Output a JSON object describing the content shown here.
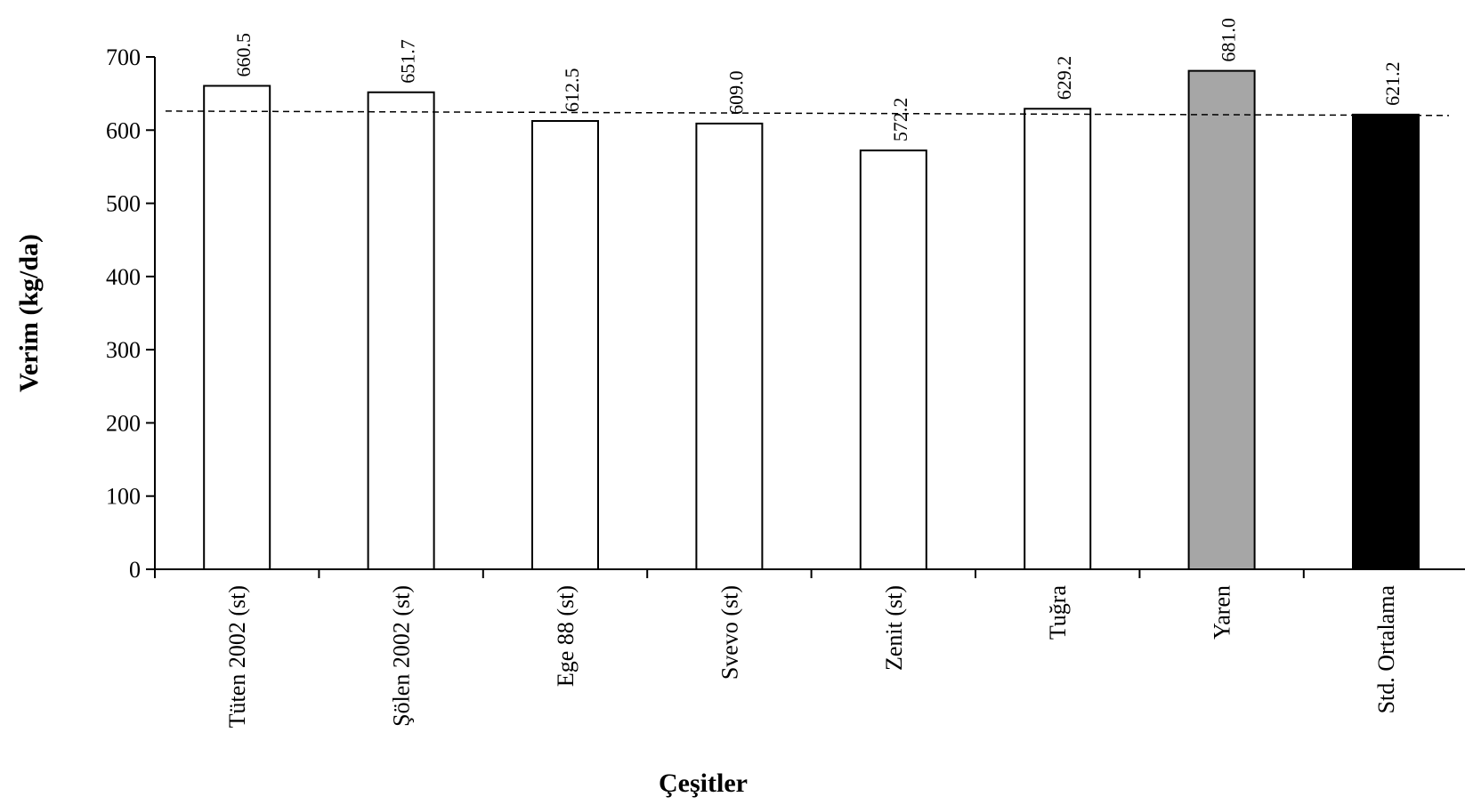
{
  "chart_data": {
    "type": "bar",
    "title": "",
    "xlabel": "Çeşitler",
    "ylabel": "Verim (kg/da)",
    "ylim": [
      0,
      700
    ],
    "yticks": [
      0,
      100,
      200,
      300,
      400,
      500,
      600,
      700
    ],
    "grid": false,
    "legend": "none",
    "categories": [
      "Tüten 2002 (st)",
      "Şölen 2002 (st)",
      "Ege 88 (st)",
      "Svevo (st)",
      "Zenit (st)",
      "Tuğra",
      "Yaren",
      "Std. Ortalama"
    ],
    "values": [
      660.5,
      651.7,
      612.5,
      609.0,
      572.2,
      629.2,
      681.0,
      621.2
    ],
    "value_labels": [
      "660.5",
      "651.7",
      "612.5",
      "609.0",
      "572.2",
      "629.2",
      "681.0",
      "621.2"
    ],
    "bar_colors": [
      "#ffffff",
      "#ffffff",
      "#ffffff",
      "#ffffff",
      "#ffffff",
      "#ffffff",
      "#a6a6a6",
      "#000000"
    ],
    "reference_line": {
      "style": "dashed",
      "y_start": 626,
      "y_end": 620
    }
  }
}
